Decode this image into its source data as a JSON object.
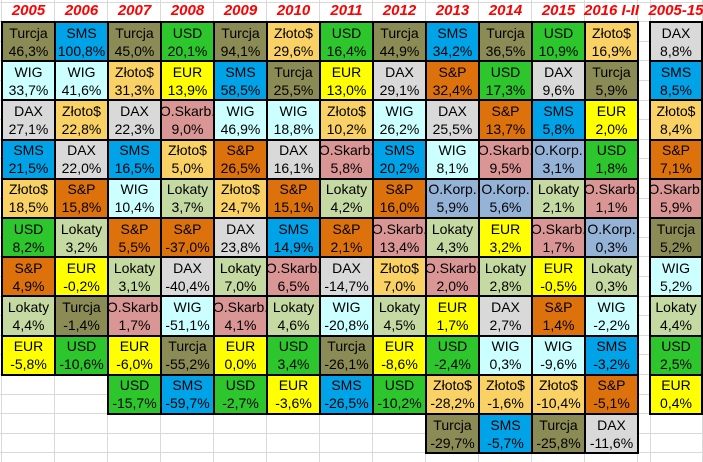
{
  "chart_data": {
    "type": "table",
    "title": "",
    "header_color": "#FF0000",
    "asset_colors": {
      "Turcja": "#8B8B55",
      "SMS": "#00A2E8",
      "WIG": "#CCFFFF",
      "DAX": "#D9D9D9",
      "Złoto$": "#FAD164",
      "USD": "#2DC62D",
      "EUR": "#FFFF00",
      "S&P": "#DD720C",
      "Lokaty": "#C5D9A2",
      "O.Skarb.": "#D99694",
      "O.Korp.": "#95B3D7"
    },
    "columns": [
      {
        "year": "2005",
        "cells": [
          {
            "asset": "Turcja",
            "value": "46,3%"
          },
          {
            "asset": "WIG",
            "value": "33,7%"
          },
          {
            "asset": "DAX",
            "value": "27,1%"
          },
          {
            "asset": "SMS",
            "value": "21,5%"
          },
          {
            "asset": "Złoto$",
            "value": "18,5%"
          },
          {
            "asset": "USD",
            "value": "8,2%"
          },
          {
            "asset": "S&P",
            "value": "4,9%"
          },
          {
            "asset": "Lokaty",
            "value": "4,4%"
          },
          {
            "asset": "EUR",
            "value": "-5,8%"
          }
        ]
      },
      {
        "year": "2006",
        "cells": [
          {
            "asset": "SMS",
            "value": "100,8%"
          },
          {
            "asset": "WIG",
            "value": "41,6%"
          },
          {
            "asset": "Złoto$",
            "value": "22,8%"
          },
          {
            "asset": "DAX",
            "value": "22,0%"
          },
          {
            "asset": "S&P",
            "value": "15,8%"
          },
          {
            "asset": "Lokaty",
            "value": "3,2%"
          },
          {
            "asset": "EUR",
            "value": "-0,2%"
          },
          {
            "asset": "Turcja",
            "value": "-1,4%"
          },
          {
            "asset": "USD",
            "value": "-10,6%"
          }
        ]
      },
      {
        "year": "2007",
        "cells": [
          {
            "asset": "Turcja",
            "value": "45,0%"
          },
          {
            "asset": "Złoto$",
            "value": "31,3%"
          },
          {
            "asset": "DAX",
            "value": "22,3%"
          },
          {
            "asset": "SMS",
            "value": "16,5%"
          },
          {
            "asset": "WIG",
            "value": "10,4%"
          },
          {
            "asset": "S&P",
            "value": "5,5%"
          },
          {
            "asset": "Lokaty",
            "value": "3,1%"
          },
          {
            "asset": "O.Skarb.",
            "value": "1,7%"
          },
          {
            "asset": "EUR",
            "value": "-6,0%"
          },
          {
            "asset": "USD",
            "value": "-15,7%"
          }
        ]
      },
      {
        "year": "2008",
        "cells": [
          {
            "asset": "USD",
            "value": "20,1%"
          },
          {
            "asset": "EUR",
            "value": "13,9%"
          },
          {
            "asset": "O.Skarb.",
            "value": "9,0%"
          },
          {
            "asset": "Złoto$",
            "value": "5,0%"
          },
          {
            "asset": "Lokaty",
            "value": "3,7%"
          },
          {
            "asset": "S&P",
            "value": "-37,0%"
          },
          {
            "asset": "DAX",
            "value": "-40,4%"
          },
          {
            "asset": "WIG",
            "value": "-51,1%"
          },
          {
            "asset": "Turcja",
            "value": "-55,2%"
          },
          {
            "asset": "SMS",
            "value": "-59,7%"
          }
        ]
      },
      {
        "year": "2009",
        "cells": [
          {
            "asset": "Turcja",
            "value": "94,1%"
          },
          {
            "asset": "SMS",
            "value": "58,5%"
          },
          {
            "asset": "WIG",
            "value": "46,9%"
          },
          {
            "asset": "S&P",
            "value": "26,5%"
          },
          {
            "asset": "Złoto$",
            "value": "24,7%"
          },
          {
            "asset": "DAX",
            "value": "23,8%"
          },
          {
            "asset": "Lokaty",
            "value": "7,0%"
          },
          {
            "asset": "O.Skarb.",
            "value": "4,1%"
          },
          {
            "asset": "EUR",
            "value": "0,0%"
          },
          {
            "asset": "USD",
            "value": "-2,7%"
          }
        ]
      },
      {
        "year": "2010",
        "cells": [
          {
            "asset": "Złoto$",
            "value": "29,6%"
          },
          {
            "asset": "Turcja",
            "value": "25,5%"
          },
          {
            "asset": "WIG",
            "value": "18,8%"
          },
          {
            "asset": "DAX",
            "value": "16,1%"
          },
          {
            "asset": "S&P",
            "value": "15,1%"
          },
          {
            "asset": "SMS",
            "value": "14,9%"
          },
          {
            "asset": "O.Skarb.",
            "value": "6,5%"
          },
          {
            "asset": "Lokaty",
            "value": "4,6%"
          },
          {
            "asset": "USD",
            "value": "3,4%"
          },
          {
            "asset": "EUR",
            "value": "-3,6%"
          }
        ]
      },
      {
        "year": "2011",
        "cells": [
          {
            "asset": "USD",
            "value": "16,4%"
          },
          {
            "asset": "EUR",
            "value": "13,0%"
          },
          {
            "asset": "Złoto$",
            "value": "10,2%"
          },
          {
            "asset": "O.Skarb.",
            "value": "5,8%"
          },
          {
            "asset": "Lokaty",
            "value": "4,2%"
          },
          {
            "asset": "S&P",
            "value": "2,1%"
          },
          {
            "asset": "DAX",
            "value": "-14,7%"
          },
          {
            "asset": "WIG",
            "value": "-20,8%"
          },
          {
            "asset": "Turcja",
            "value": "-26,1%"
          },
          {
            "asset": "SMS",
            "value": "-26,5%"
          }
        ]
      },
      {
        "year": "2012",
        "cells": [
          {
            "asset": "Turcja",
            "value": "44,9%"
          },
          {
            "asset": "DAX",
            "value": "29,1%"
          },
          {
            "asset": "WIG",
            "value": "26,2%"
          },
          {
            "asset": "SMS",
            "value": "20,2%"
          },
          {
            "asset": "S&P",
            "value": "16,0%"
          },
          {
            "asset": "O.Skarb.",
            "value": "13,4%"
          },
          {
            "asset": "Złoto$",
            "value": "7,0%"
          },
          {
            "asset": "Lokaty",
            "value": "4,5%"
          },
          {
            "asset": "EUR",
            "value": "-8,6%"
          },
          {
            "asset": "USD",
            "value": "-10,2%"
          }
        ]
      },
      {
        "year": "2013",
        "cells": [
          {
            "asset": "SMS",
            "value": "34,2%"
          },
          {
            "asset": "S&P",
            "value": "32,4%"
          },
          {
            "asset": "DAX",
            "value": "25,5%"
          },
          {
            "asset": "WIG",
            "value": "8,1%"
          },
          {
            "asset": "O.Korp.",
            "value": "5,9%"
          },
          {
            "asset": "Lokaty",
            "value": "4,3%"
          },
          {
            "asset": "O.Skarb.",
            "value": "2,0%"
          },
          {
            "asset": "EUR",
            "value": "1,7%"
          },
          {
            "asset": "USD",
            "value": "-2,4%"
          },
          {
            "asset": "Złoto$",
            "value": "-28,2%"
          },
          {
            "asset": "Turcja",
            "value": "-29,7%"
          }
        ]
      },
      {
        "year": "2014",
        "cells": [
          {
            "asset": "Turcja",
            "value": "36,5%"
          },
          {
            "asset": "USD",
            "value": "17,3%"
          },
          {
            "asset": "S&P",
            "value": "13,7%"
          },
          {
            "asset": "O.Skarb.",
            "value": "9,5%"
          },
          {
            "asset": "O.Korp.",
            "value": "5,6%"
          },
          {
            "asset": "EUR",
            "value": "3,2%"
          },
          {
            "asset": "Lokaty",
            "value": "2,8%"
          },
          {
            "asset": "DAX",
            "value": "2,7%"
          },
          {
            "asset": "WIG",
            "value": "0,3%"
          },
          {
            "asset": "Złoto$",
            "value": "-1,6%"
          },
          {
            "asset": "SMS",
            "value": "-5,7%"
          }
        ]
      },
      {
        "year": "2015",
        "cells": [
          {
            "asset": "USD",
            "value": "10,9%"
          },
          {
            "asset": "DAX",
            "value": "9,6%"
          },
          {
            "asset": "SMS",
            "value": "5,8%"
          },
          {
            "asset": "O.Korp.",
            "value": "3,1%"
          },
          {
            "asset": "Lokaty",
            "value": "2,1%"
          },
          {
            "asset": "O.Skarb.",
            "value": "1,7%"
          },
          {
            "asset": "EUR",
            "value": "-0,5%"
          },
          {
            "asset": "S&P",
            "value": "1,4%"
          },
          {
            "asset": "WIG",
            "value": "-9,6%"
          },
          {
            "asset": "Złoto$",
            "value": "-10,4%"
          },
          {
            "asset": "Turcja",
            "value": "-25,8%"
          }
        ]
      },
      {
        "year": "2016 I-II",
        "cells": [
          {
            "asset": "Złoto$",
            "value": "16,9%"
          },
          {
            "asset": "Turcja",
            "value": "5,9%"
          },
          {
            "asset": "EUR",
            "value": "2,0%"
          },
          {
            "asset": "USD",
            "value": "1,8%"
          },
          {
            "asset": "O.Skarb.",
            "value": "1,1%"
          },
          {
            "asset": "O.Korp.",
            "value": "0,3%"
          },
          {
            "asset": "Lokaty",
            "value": "0,3%"
          },
          {
            "asset": "WIG",
            "value": "-2,2%"
          },
          {
            "asset": "SMS",
            "value": "-3,2%"
          },
          {
            "asset": "S&P",
            "value": "-5,1%"
          },
          {
            "asset": "DAX",
            "value": "-11,6%"
          }
        ]
      },
      {
        "year": "2005-15",
        "gap_before": true,
        "cells": [
          {
            "asset": "DAX",
            "value": "8,8%"
          },
          {
            "asset": "SMS",
            "value": "8,5%"
          },
          {
            "asset": "Złoto$",
            "value": "8,4%"
          },
          {
            "asset": "S&P",
            "value": "7,1%"
          },
          {
            "asset": "O.Skarb.",
            "value": "5,9%"
          },
          {
            "asset": "Turcja",
            "value": "5,2%"
          },
          {
            "asset": "WIG",
            "value": "5,2%"
          },
          {
            "asset": "Lokaty",
            "value": "4,4%"
          },
          {
            "asset": "USD",
            "value": "2,5%"
          },
          {
            "asset": "EUR",
            "value": "0,4%"
          }
        ]
      }
    ]
  }
}
